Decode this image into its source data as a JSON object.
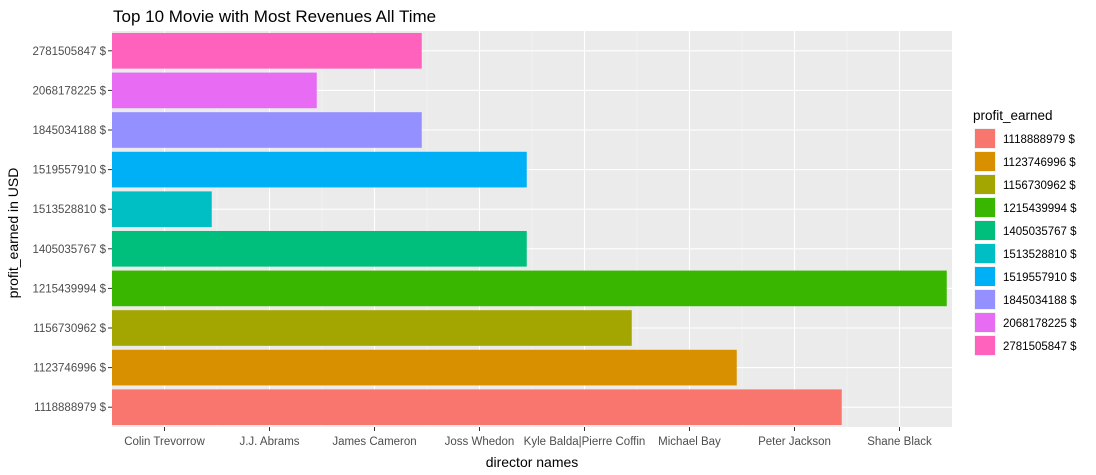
{
  "chart_data": {
    "type": "bar",
    "orientation": "horizontal",
    "title": "Top 10 Movie with Most Revenues All Time",
    "xlabel": "director names",
    "ylabel": "profit_earned in USD",
    "x_categories": [
      "Colin Trevorrow",
      "J.J. Abrams",
      "James Cameron",
      "Joss Whedon",
      "Kyle Balda|Pierre Coffin",
      "Michael Bay",
      "Peter Jackson",
      "Shane Black"
    ],
    "bars": [
      {
        "category": "1118888979 $",
        "value": 7,
        "color": "#F8766D"
      },
      {
        "category": "1123746996 $",
        "value": 6,
        "color": "#D89000"
      },
      {
        "category": "1156730962 $",
        "value": 5,
        "color": "#A3A500"
      },
      {
        "category": "1215439994 $",
        "value": 8,
        "color": "#39B600"
      },
      {
        "category": "1405035767 $",
        "value": 4,
        "color": "#00BF7D"
      },
      {
        "category": "1513528810 $",
        "value": 1,
        "color": "#00BFC4"
      },
      {
        "category": "1519557910 $",
        "value": 4,
        "color": "#00B0F6"
      },
      {
        "category": "1845034188 $",
        "value": 3,
        "color": "#9590FF"
      },
      {
        "category": "2068178225 $",
        "value": 2,
        "color": "#E76BF3"
      },
      {
        "category": "2781505847 $",
        "value": 3,
        "color": "#FF62BC"
      }
    ],
    "legend": {
      "title": "profit_earned",
      "placement": "right",
      "entries": [
        "1118888979 $",
        "1123746996 $",
        "1156730962 $",
        "1215439994 $",
        "1405035767 $",
        "1513528810 $",
        "1519557910 $",
        "1845034188 $",
        "2068178225 $",
        "2781505847 $"
      ]
    },
    "grid": true,
    "panel_background": "#EBEBEB"
  }
}
